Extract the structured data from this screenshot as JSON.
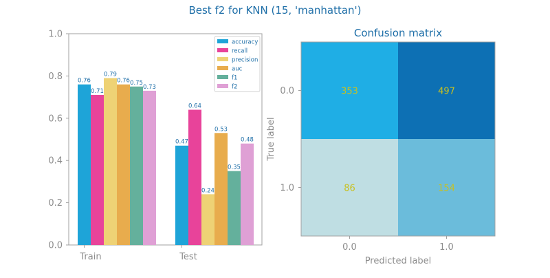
{
  "figure": {
    "suptitle": "Best f2 for KNN (15, 'manhattan')"
  },
  "chart_data": [
    {
      "type": "bar",
      "categories": [
        "Train",
        "Test"
      ],
      "ylim": [
        0,
        1.0
      ],
      "yticks": [
        "0.0",
        "0.2",
        "0.4",
        "0.6",
        "0.8",
        "1.0"
      ],
      "legend_position": "top-right",
      "series": [
        {
          "name": "accuracy",
          "color": "#1ea4d8",
          "values": [
            0.76,
            0.47
          ],
          "labels": [
            "0.76",
            "0.47"
          ]
        },
        {
          "name": "recall",
          "color": "#e8439a",
          "values": [
            0.71,
            0.64
          ],
          "labels": [
            "0.71",
            "0.64"
          ]
        },
        {
          "name": "precision",
          "color": "#eed275",
          "values": [
            0.79,
            0.24
          ],
          "labels": [
            "0.79",
            "0.24"
          ]
        },
        {
          "name": "auc",
          "color": "#e8ac4d",
          "values": [
            0.76,
            0.53
          ],
          "labels": [
            "0.76",
            "0.53"
          ]
        },
        {
          "name": "f1",
          "color": "#64b09c",
          "values": [
            0.75,
            0.35
          ],
          "labels": [
            "0.75",
            "0.35"
          ]
        },
        {
          "name": "f2",
          "color": "#dfa0d5",
          "values": [
            0.73,
            0.48
          ],
          "labels": [
            "0.73",
            "0.48"
          ]
        }
      ]
    },
    {
      "type": "heatmap",
      "title": "Confusion matrix",
      "xlabel": "Predicted label",
      "ylabel": "True label",
      "x_ticks": [
        "0.0",
        "1.0"
      ],
      "y_ticks": [
        "0.0",
        "1.0"
      ],
      "matrix": [
        [
          353,
          497
        ],
        [
          86,
          154
        ]
      ],
      "cell_colors": [
        [
          "#1faee5",
          "#0d70b4"
        ],
        [
          "#bfdee3",
          "#6bbcdb"
        ]
      ]
    }
  ]
}
